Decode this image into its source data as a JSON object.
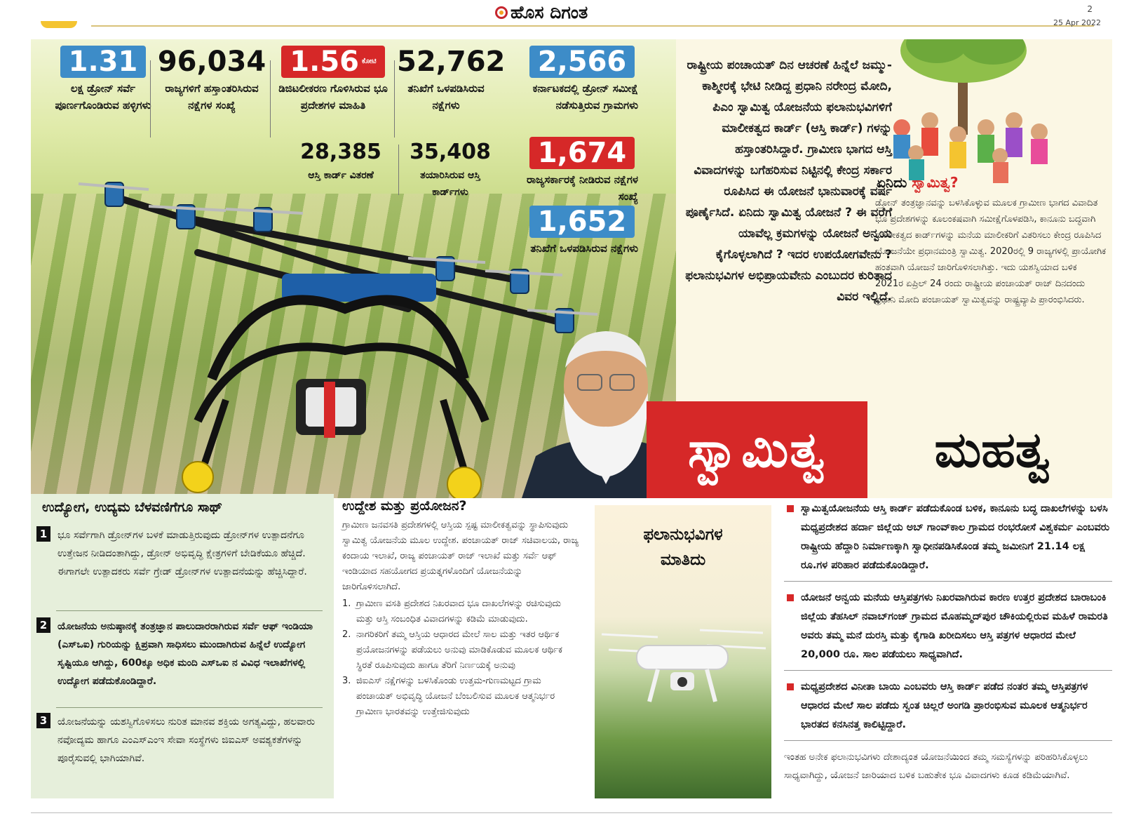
{
  "masthead": {
    "logo_text": "ಹೊಸ ದಿಗಂತ",
    "page_number": "2",
    "date": "25 Apr 2022"
  },
  "stats": [
    {
      "value": "1.31",
      "unit": "",
      "label": "ಲಕ್ಷ ಡ್ರೋನ್ ಸರ್ವೆ ಪೂರ್ಣಗೊಂಡಿರುವ ಹಳ್ಳಿಗಳು",
      "style": "blue"
    },
    {
      "value": "96,034",
      "unit": "",
      "label": "ರಾಜ್ಯಗಳಿಗೆ ಹಸ್ತಾಂತರಿಸಿರುವ ನಕ್ಷೆಗಳ ಸಂಖ್ಯೆ",
      "style": "plain"
    },
    {
      "value": "1.56",
      "unit": "ಕೋಟಿ",
      "label": "ಡಿಜಿಟಲೀಕರಣ ಗೊಳಿಸಿರುವ ಭೂ ಪ್ರದೇಶಗಳ ಮಾಹಿತಿ",
      "style": "red"
    },
    {
      "value": "52,762",
      "unit": "",
      "label": "ತನಿಖೆಗೆ ಒಳಪಡಿಸಿರುವ ನಕ್ಷೆಗಳು",
      "style": "plain"
    },
    {
      "value": "2,566",
      "unit": "",
      "label": "ಕರ್ನಾಟಕದಲ್ಲಿ ಡ್ರೋನ್ ಸಮೀಕ್ಷೆ ನಡೆಸುತ್ತಿರುವ ಗ್ರಾಮಗಳು",
      "style": "blue"
    },
    {
      "value": "28,385",
      "unit": "",
      "label": "ಆಸ್ತಿ ಕಾರ್ಡ್ ವಿತರಣೆ",
      "style": "plain"
    },
    {
      "value": "35,408",
      "unit": "",
      "label": "ತಯಾರಿಸಿರುವ ಆಸ್ತಿ ಕಾರ್ಡ್‌ಗಳು",
      "style": "plain"
    },
    {
      "value": "1,674",
      "unit": "",
      "label": "ರಾಜ್ಯಸರ್ಕಾರಕ್ಕೆ ನೀಡಿರುವ ನಕ್ಷೆಗಳ ಸಂಖ್ಯೆ",
      "style": "red"
    },
    {
      "value": "1,652",
      "unit": "",
      "label": "ತನಿಖೆಗೆ ಒಳಪಡಿಸಿರುವ ನಕ್ಷೆಗಳು",
      "style": "blue"
    }
  ],
  "main_paragraph": "ರಾಷ್ಟ್ರೀಯ ಪಂಚಾಯತ್ ದಿನ ಆಚರಣೆ ಹಿನ್ನೆಲೆ ಜಮ್ಮು-ಕಾಶ್ಮೀರಕ್ಕೆ ಭೇಟಿ ನೀಡಿದ್ದ ಪ್ರಧಾನಿ ನರೇಂದ್ರ ಮೋದಿ, ಪಿಎಂ ಸ್ವಾಮಿತ್ವ ಯೋಜನೆಯ ಫಲಾನುಭವಿಗಳಿಗೆ ಮಾಲೀಕತ್ವದ ಕಾರ್ಡ್ (ಆಸ್ತಿ ಕಾರ್ಡ್) ಗಳನ್ನು ಹಸ್ತಾಂತರಿಸಿದ್ದಾರೆ. ಗ್ರಾಮೀಣ ಭಾಗದ ಆಸ್ತಿ ವಿವಾದಗಳನ್ನು ಬಗೆಹರಿಸುವ ನಿಟ್ಟಿನಲ್ಲಿ ಕೇಂದ್ರ ಸರ್ಕಾರ ರೂಪಿಸಿದ ಈ ಯೋಜನೆ ಭಾನುವಾರಕ್ಕೆ ವರ್ಷ ಪೂರ್ಣೈಸಿದೆ. ಏನಿದು ಸ್ವಾಮಿತ್ವ ಯೋಜನೆ ? ಈ ವರೆಗೆ ಯಾವೆಲ್ಲ ಕ್ರಮಗಳನ್ನು ಯೋಜನೆ ಅನ್ವಯ ಕೈಗೊಳ್ಳಲಾಗಿದೆ ? ಇದರ ಉಪಯೋಗವೇನು ? ಫಲಾನುಭವಿಗಳ ಅಭಿಪ್ರಾಯವೇನು ಎಂಬುದರ ಕುರಿತಾದ ವಿವರ ಇಲ್ಲಿದೆ.",
  "what_is": {
    "title_prefix": "ಏನಿದು ",
    "title_highlight": "ಸ್ವಾಮಿತ್ವ?",
    "body": "ಡ್ರೋನ್ ತಂತ್ರಜ್ಞಾನವನ್ನು ಬಳಸಿಕೊಳ್ಳುವ ಮೂಲಕ ಗ್ರಾಮೀಣ ಭಾಗದ ವಿವಾದಿತ ಭೂ ಪ್ರದೇಶಗಳನ್ನು ಕೂಲಂಕಷವಾಗಿ ಸಮೀಕ್ಷೆಗೊಳಪಡಿಸಿ, ಕಾನೂನು ಬದ್ಧವಾಗಿ ಮಾಲೀಕತ್ವದ ಕಾರ್ಡ್‌ಗಳನ್ನು ಮನೆಯ ಮಾಲೀಕರಿಗೆ ವಿತರಿಸಲು ಕೇಂದ್ರ ರೂಪಿಸಿದ ಯೋಜನೆಯೇ ಪ್ರಧಾನಮಂತ್ರಿ ಸ್ವಾಮಿತ್ವ. 2020ರಲ್ಲಿ 9 ರಾಜ್ಯಗಳಲ್ಲಿ ಪ್ರಾಯೋಗಿಕ ಹಂತವಾಗಿ ಯೋಜನೆ ಜಾರಿಗೊಳಿಸಲಾಗಿತ್ತು. ಇದು ಯಶಸ್ವಿಯಾದ ಬಳಿಕ 2021ರ ಏಪ್ರಿಲ್ 24 ರಂದು ರಾಷ್ಟ್ರೀಯ ಪಂಚಾಯತ್ ರಾಜ್ ದಿನದಂದು ಪ್ರಧಾನಿ ಮೋದಿ ಪಂಚಾಯತ್ ಸ್ವಾಮಿತ್ವವನ್ನು ರಾಷ್ಟ್ರವ್ಯಾಪಿ ಪ್ರಾರಂಭಿಸಿದರು."
  },
  "headline": {
    "red_word": "ಸ್ವಾಮಿತ್ವ",
    "black_word": "ಮಹತ್ವ"
  },
  "employment": {
    "title": "ಉದ್ಯೋಗ, ಉದ್ಯಮ ಬೆಳವಣಿಗೆಗೂ ಸಾಥ್",
    "items": [
      {
        "num": "1",
        "text": "ಭೂ ಸರ್ವೆಗಾಗಿ ಡ್ರೋನ್‌ಗಳ ಬಳಕೆ ಮಾಡುತ್ತಿರುವುದು ಡ್ರೋನ್‌ಗಳ ಉತ್ಪಾದನೆಗೂ ಉತ್ತೇಜನ ನೀಡಿದಂತಾಗಿದ್ದು, ಡ್ರೋನ್ ಅಭಿವೃದ್ಧಿ ಕ್ಷೇತ್ರಗಳಿಗೆ ಬೇಡಿಕೆಯೂ ಹೆಚ್ಚಿದೆ. ಈಗಾಗಲೇ ಉತ್ಪಾದಕರು ಸರ್ವೆ ಗ್ರೇಡ್ ಡ್ರೋನ್‌ಗಳ ಉತ್ಪಾದನೆಯನ್ನು ಹೆಚ್ಚಿಸಿದ್ದಾರೆ."
      },
      {
        "num": "2",
        "text": "ಯೋಜನೆಯ ಅನುಷ್ಠಾನಕ್ಕೆ ತಂತ್ರಜ್ಞಾನ ಪಾಲುದಾರರಾಗಿರುವ ಸರ್ವೆ ಆಫ್ ಇಂಡಿಯಾ (ಎಸ್‌ಒಐ) ಗುರಿಯನ್ನು ಕ್ಷಿಪ್ರವಾಗಿ ಸಾಧಿಸಲು ಮುಂದಾಗಿರುವ ಹಿನ್ನೆಲೆ ಉದ್ಯೋಗ ಸೃಷ್ಟಿಯೂ ಆಗಿದ್ದು, 600ಕ್ಕೂ ಅಧಿಕ ಮಂದಿ ಎಸ್‌ಒಐ ನ ವಿವಿಧ ಇಲಾಖೆಗಳಲ್ಲಿ ಉದ್ಯೋಗ ಪಡೆದುಕೊಂಡಿದ್ದಾರೆ."
      },
      {
        "num": "3",
        "text": "ಯೋಜನೆಯನ್ನು ಯಶಸ್ವಿಗೊಳಿಸಲು ನುರಿತ ಮಾನವ ಶಕ್ತಿಯ ಅಗತ್ಯವಿದ್ದು, ಹಲವಾರು ನವೋದ್ಯಮ ಹಾಗೂ ಎಂಎಸ್‌ಎಂಇ ಸೇವಾ ಸಂಸ್ಥೆಗಳು ಜಿಐಎಸ್ ಅವಶ್ಯಕತೆಗಳನ್ನು ಪೂರೈಸುವಲ್ಲಿ ಭಾಗಿಯಾಗಿವೆ."
      }
    ]
  },
  "objective": {
    "title": "ಉದ್ದೇಶ ಮತ್ತು ಪ್ರಯೋಜನ?",
    "intro": "ಗ್ರಾಮೀಣ ಜನವಸತಿ ಪ್ರದೇಶಗಳಲ್ಲಿ ಆಸ್ತಿಯ ಸ್ಪಷ್ಟ ಮಾಲೀಕತ್ವವನ್ನು ಸ್ಥಾಪಿಸುವುದು ಸ್ವಾಮಿತ್ವ ಯೋಜನೆಯ ಮೂಲ ಉದ್ದೇಶ. ಪಂಚಾಯತ್ ರಾಜ್ ಸಚಿವಾಲಯ, ರಾಜ್ಯ ಕಂದಾಯ ಇಲಾಖೆ, ರಾಜ್ಯ ಪಂಚಾಯತ್ ರಾಜ್ ಇಲಾಖೆ ಮತ್ತು ಸರ್ವೆ ಆಫ್ ಇಂಡಿಯಾದ ಸಹಯೋಗದ ಪ್ರಯತ್ನಗಳೊಂದಿಗೆ ಯೋಜನೆಯನ್ನು ಜಾರಿಗೊಳಿಸಲಾಗಿದೆ.",
    "points": [
      {
        "num": "1.",
        "text": "ಗ್ರಾಮೀಣ ವಸತಿ ಪ್ರದೇಶದ ನಿಖರವಾದ ಭೂ ದಾಖಲೆಗಳನ್ನು ರಚಿಸುವುದು ಮತ್ತು ಆಸ್ತಿ ಸಂಬಂಧಿತ ವಿವಾದಗಳನ್ನು ಕಡಿಮೆ ಮಾಡುವುದು."
      },
      {
        "num": "2.",
        "text": "ನಾಗರಿಕರಿಗೆ ತಮ್ಮ ಆಸ್ತಿಯ ಆಧಾರದ ಮೇಲೆ ಸಾಲ ಮತ್ತು ಇತರ ಆರ್ಥಿಕ ಪ್ರಯೋಜನಗಳನ್ನು ಪಡೆಯಲು ಅನುವು ಮಾಡಿಕೊಡುವ ಮೂಲಕ ಆರ್ಥಿಕ ಸ್ಥಿರತೆ ರೂಪಿಸುವುದು ಹಾಗೂ ತೆರಿಗೆ ನಿರ್ಣಯಕ್ಕೆ ಅನುವು"
      },
      {
        "num": "3.",
        "text": "ಜಿಐಎಸ್ ನಕ್ಷೆಗಳನ್ನು ಬಳಸಿಕೊಂಡು ಉತ್ತಮ-ಗುಣಮಟ್ಟದ ಗ್ರಾಮ ಪಂಚಾಯತ್ ಅಭಿವೃದ್ಧಿ ಯೋಜನೆ ಬೆಂಬಲಿಸುವ ಮೂಲಕ ಆತ್ಮನಿರ್ಭರ ಗ್ರಾಮೀಣ ಭಾರತವನ್ನು ಉತ್ತೇಜಿಸುವುದು"
      }
    ]
  },
  "beneficiaries": {
    "title_line1": "ಫಲಾನುಭವಿಗಳ",
    "title_line2": "ಮಾತಿದು",
    "quotes": [
      "ಸ್ವಾಮಿತ್ವಯೋಜನೆಯ ಆಸ್ತಿ ಕಾರ್ಡ್ ಪಡೆದುಕೊಂಡ ಬಳಿಕ, ಕಾನೂನು ಬದ್ಧ ದಾಖಲೆಗಳನ್ನು ಬಳಸಿ ಮಧ್ಯಪ್ರದೇಶದ ಹರ್ದಾ ಜಿಲ್ಲೆಯ ಅಬ್ ಗಾಂವ್‌ಕಾಲ ಗ್ರಾಮದ ರಂಭರೋಸೆ ವಿಶ್ವಕರ್ಮ ಎಂಬವರು ರಾಷ್ಟ್ರೀಯ ಹೆದ್ದಾರಿ ನಿರ್ಮಾಣಕ್ಕಾಗಿ ಸ್ವಾಧೀನಪಡಿಸಿಕೊಂಡ ತಮ್ಮ ಜಮೀನಿಗೆ 21.14 ಲಕ್ಷ ರೂ.ಗಳ ಪರಿಹಾರ ಪಡೆದುಕೊಂಡಿದ್ದಾರೆ.",
      "ಯೋಜನೆ ಅನ್ವಯ ಮನೆಯ ಆಸ್ತಿಪತ್ರಗಳು ನಿಖರವಾಗಿರುವ ಕಾರಣ ಉತ್ತರ ಪ್ರದೇಶದ ಬಾರಾಬಂಕಿ ಜಿಲ್ಲೆಯ ತೆಹಸಿಲ್ ನವಾಬ್‌ಗಂಜ್ ಗ್ರಾಮದ ಮೊಹಮ್ಮದ್‌ಪುರ ಚೌಕಿಯಲ್ಲಿರುವ ಮಹಿಳೆ ರಾಮರತಿ ಅವರು ತಮ್ಮ ಮನೆ ದುರಸ್ತಿ ಮತ್ತು ಕೈಗಾಡಿ ಖರೀದಿಸಲು ಆಸ್ತಿ ಪತ್ರಗಳ ಆಧಾರದ ಮೇಲೆ 20,000 ರೂ. ಸಾಲ ಪಡೆಯಲು ಸಾಧ್ಯವಾಗಿದೆ.",
      "ಮಧ್ಯಪ್ರದೇಶದ ವಿನೀತಾ ಬಾಯಿ ಎಂಬವರು ಆಸ್ತಿ ಕಾರ್ಡ್ ಪಡೆದ ನಂತರ ತಮ್ಮ ಆಸ್ತಿಪತ್ರಗಳ ಆಧಾರದ ಮೇಲೆ ಸಾಲ ಪಡೆದು ಸ್ವಂತ ಚಿಲ್ಲರೆ ಅಂಗಡಿ ಪ್ರಾರಂಭಿಸುವ ಮೂಲಕ ಆತ್ಮನಿರ್ಭರ ಭಾರತದ ಕನಸಿನತ್ತ ಕಾಲಿಟ್ಟಿದ್ದಾರೆ."
    ],
    "closing": "ಇಂತಹ ಅನೇಕ ಫಲಾನುಭವಿಗಳು ದೇಶಾದ್ಯಂತ ಯೋಜನೆಯಿಂದ ತಮ್ಮ ಸಮಸ್ಯೆಗಳನ್ನು ಪರಿಹರಿಸಿಕೊಳ್ಳಲು ಸಾಧ್ಯವಾಗಿದ್ದು, ಯೋಜನೆ ಜಾರಿಯಾದ ಬಳಿಕ ಬಹುತೇಕ ಭೂ ವಿವಾದಗಳು ಕೂಡ ಕಡಿಮೆಯಾಗಿವೆ."
  },
  "colors": {
    "accent_red": "#d62828",
    "accent_blue": "#3d8cc8",
    "panel_green": "#e6efdb",
    "panel_cream": "#fbf7e4"
  },
  "icons": [
    "newspaper-logo-icon",
    "drone-illustration",
    "small-drone-illustration",
    "village-gathering-illustration",
    "portrait-illustration"
  ]
}
